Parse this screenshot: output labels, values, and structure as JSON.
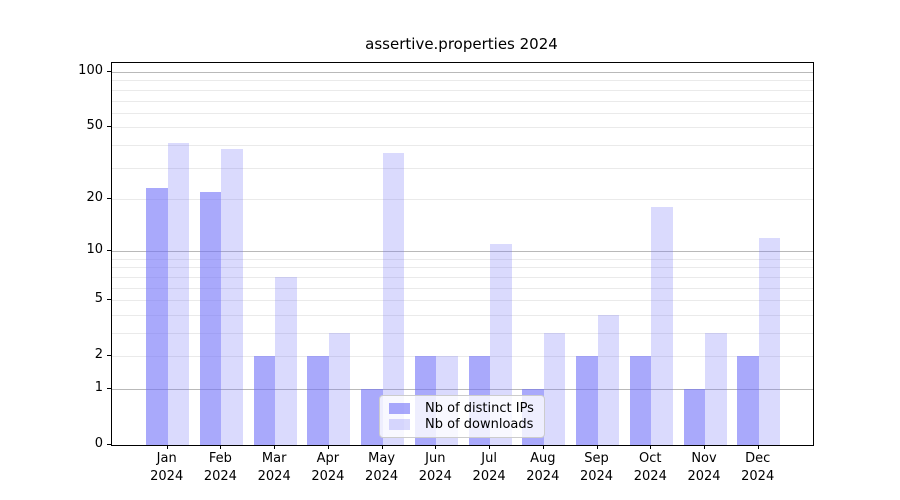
{
  "chart_data": {
    "type": "bar",
    "title": "assertive.properties 2024",
    "categories": [
      "Jan 2024",
      "Feb 2024",
      "Mar 2024",
      "Apr 2024",
      "May 2024",
      "Jun 2024",
      "Jul 2024",
      "Aug 2024",
      "Sep 2024",
      "Oct 2024",
      "Nov 2024",
      "Dec 2024"
    ],
    "x_tick_months": [
      "Jan",
      "Feb",
      "Mar",
      "Apr",
      "May",
      "Jun",
      "Jul",
      "Aug",
      "Sep",
      "Oct",
      "Nov",
      "Dec"
    ],
    "x_tick_year": "2024",
    "series": [
      {
        "name": "Nb of distinct IPs",
        "values": [
          23,
          22,
          2,
          2,
          1,
          2,
          2,
          1,
          2,
          2,
          1,
          2
        ],
        "color": "#aaaaf9",
        "color_rgba": "rgba(112,112,249,0.60)"
      },
      {
        "name": "Nb of downloads",
        "values": [
          41,
          38,
          7,
          3,
          36,
          2,
          11,
          3,
          4,
          18,
          3,
          12
        ],
        "color": "#dadaf9",
        "color_rgba": "rgba(112,112,249,0.26)"
      }
    ],
    "yscale": "log1p",
    "ylim": [
      0,
      112
    ],
    "yticks": [
      {
        "value": 100,
        "label": "100"
      },
      {
        "value": 50,
        "label": "50"
      },
      {
        "value": 20,
        "label": "20"
      },
      {
        "value": 10,
        "label": "10"
      },
      {
        "value": 5,
        "label": "5"
      },
      {
        "value": 2,
        "label": "2"
      },
      {
        "value": 1,
        "label": "1"
      },
      {
        "value": 0,
        "label": "0"
      }
    ],
    "grid": {
      "major_values": [
        1,
        10,
        100
      ],
      "minor_values": [
        2,
        3,
        4,
        5,
        6,
        7,
        8,
        9,
        20,
        30,
        40,
        50,
        60,
        70,
        80,
        90
      ],
      "major_color": "#b9b9b9",
      "minor_color": "#eaeaea"
    },
    "legend": {
      "position": "lower-center-inside",
      "entries": [
        "Nb of distinct IPs",
        "Nb of downloads"
      ]
    },
    "spine_color": "#000000",
    "background_color": "#ffffff"
  }
}
